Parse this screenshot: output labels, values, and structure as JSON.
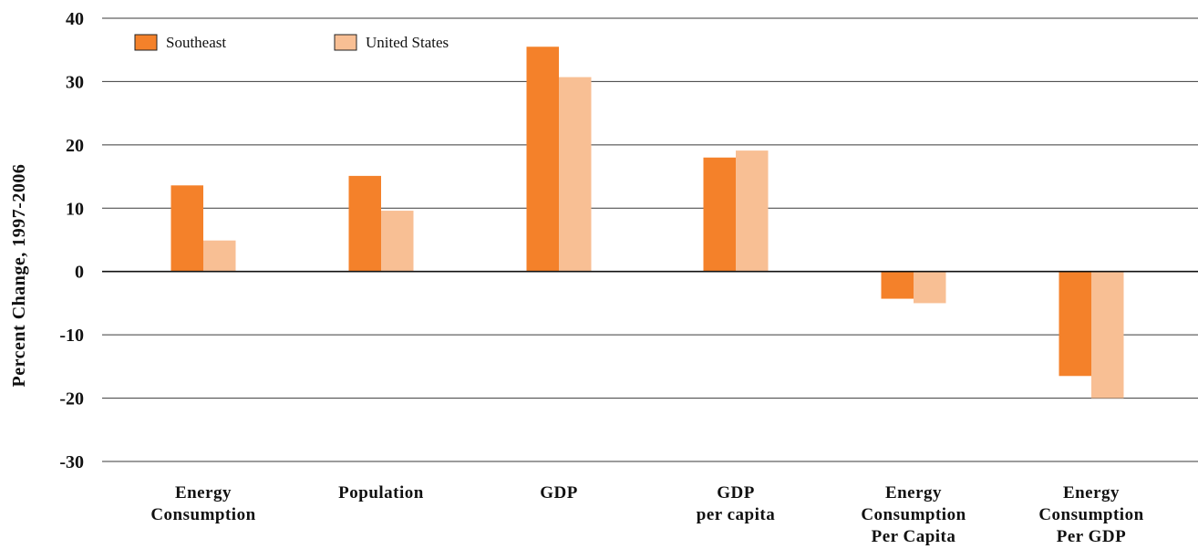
{
  "chart_data": {
    "type": "bar",
    "ylabel": "Percent Change, 1997-2006",
    "xlabel": "",
    "ylim": [
      -30,
      40
    ],
    "yticks": [
      40,
      30,
      20,
      10,
      0,
      -10,
      -20,
      -30
    ],
    "ytick_labels": [
      "40",
      "30",
      "20",
      "10",
      "0",
      "-10",
      "-20",
      "-30"
    ],
    "grid": true,
    "legend_position": "top-left",
    "categories": [
      [
        "Energy",
        "Consumption"
      ],
      [
        "Population"
      ],
      [
        "GDP"
      ],
      [
        "GDP",
        "per capita"
      ],
      [
        "Energy",
        "Consumption",
        "Per Capita"
      ],
      [
        "Energy",
        "Consumption",
        "Per GDP"
      ]
    ],
    "series": [
      {
        "name": "Southeast",
        "color": "#f4812a",
        "values": [
          13.6,
          15.1,
          35.5,
          18.0,
          -4.3,
          -16.5
        ]
      },
      {
        "name": "United States",
        "color": "#f8bf94",
        "values": [
          4.9,
          9.6,
          30.7,
          19.1,
          -5.0,
          -20.0
        ]
      }
    ]
  }
}
